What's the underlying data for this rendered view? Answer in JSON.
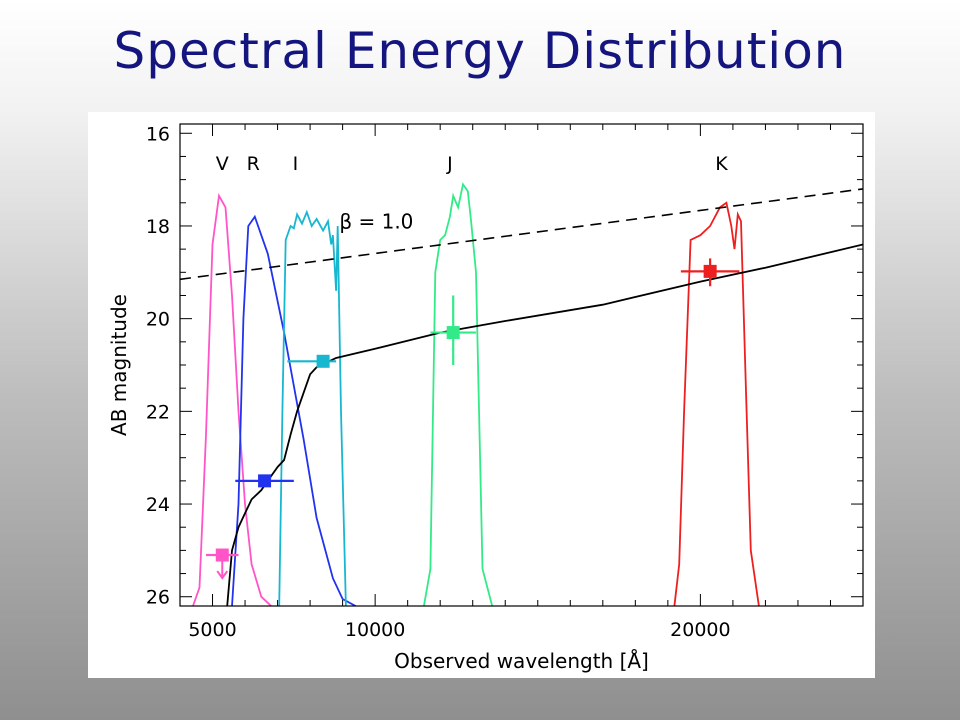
{
  "slide": {
    "title": "Spectral Energy Distribution"
  },
  "chart_data": {
    "type": "line",
    "title": "Spectral Energy Distribution",
    "xlabel": "Observed wavelength [Å]",
    "ylabel": "AB magnitude",
    "xlim": [
      4000,
      25000
    ],
    "ylim": [
      26.2,
      15.8
    ],
    "y_inverted": true,
    "x_ticks": [
      5000,
      10000,
      20000
    ],
    "y_ticks": [
      16,
      18,
      20,
      22,
      24,
      26
    ],
    "filters": [
      {
        "name": "V",
        "label_x": 5300,
        "color": "#ff55c8",
        "curve": [
          [
            4400,
            26.2
          ],
          [
            4600,
            25.8
          ],
          [
            4800,
            22.5
          ],
          [
            5000,
            18.4
          ],
          [
            5200,
            17.35
          ],
          [
            5400,
            17.6
          ],
          [
            5600,
            19.5
          ],
          [
            5800,
            22.0
          ],
          [
            6000,
            24.0
          ],
          [
            6200,
            25.3
          ],
          [
            6500,
            26.0
          ],
          [
            6800,
            26.2
          ]
        ]
      },
      {
        "name": "R",
        "label_x": 6250,
        "color": "#2233ee",
        "curve": [
          [
            5600,
            26.2
          ],
          [
            5800,
            24.0
          ],
          [
            5950,
            20.0
          ],
          [
            6100,
            18.0
          ],
          [
            6300,
            17.8
          ],
          [
            6700,
            18.6
          ],
          [
            7200,
            20.3
          ],
          [
            7800,
            22.6
          ],
          [
            8200,
            24.3
          ],
          [
            8700,
            25.6
          ],
          [
            9000,
            26.05
          ],
          [
            9400,
            26.2
          ]
        ]
      },
      {
        "name": "I",
        "label_x": 7550,
        "color": "#17b7d0",
        "curve": [
          [
            7050,
            26.2
          ],
          [
            7150,
            22.0
          ],
          [
            7250,
            18.3
          ],
          [
            7400,
            18.0
          ],
          [
            7500,
            18.05
          ],
          [
            7600,
            17.75
          ],
          [
            7750,
            17.95
          ],
          [
            7900,
            17.7
          ],
          [
            8050,
            18.0
          ],
          [
            8200,
            17.85
          ],
          [
            8400,
            18.1
          ],
          [
            8550,
            17.9
          ],
          [
            8650,
            18.4
          ],
          [
            8700,
            18.2
          ],
          [
            8800,
            19.4
          ],
          [
            8850,
            18.0
          ],
          [
            8950,
            22.0
          ],
          [
            9100,
            26.2
          ]
        ]
      },
      {
        "name": "J",
        "label_x": 12300,
        "color": "#33ea88",
        "curve": [
          [
            11500,
            26.2
          ],
          [
            11700,
            25.4
          ],
          [
            11850,
            19.0
          ],
          [
            12000,
            18.3
          ],
          [
            12150,
            18.2
          ],
          [
            12300,
            17.8
          ],
          [
            12400,
            17.35
          ],
          [
            12550,
            17.6
          ],
          [
            12700,
            17.1
          ],
          [
            12850,
            17.25
          ],
          [
            12950,
            17.9
          ],
          [
            13100,
            19.0
          ],
          [
            13300,
            25.4
          ],
          [
            13600,
            26.2
          ]
        ]
      },
      {
        "name": "K",
        "label_x": 20650,
        "color": "#ee1f1f",
        "curve": [
          [
            19200,
            26.2
          ],
          [
            19350,
            25.3
          ],
          [
            19500,
            22.0
          ],
          [
            19700,
            18.3
          ],
          [
            20000,
            18.2
          ],
          [
            20300,
            18.0
          ],
          [
            20600,
            17.6
          ],
          [
            20800,
            17.5
          ],
          [
            20950,
            18.0
          ],
          [
            21050,
            18.5
          ],
          [
            21150,
            17.75
          ],
          [
            21250,
            17.9
          ],
          [
            21400,
            21.5
          ],
          [
            21550,
            25.0
          ],
          [
            21800,
            26.2
          ]
        ]
      }
    ],
    "reference_line": {
      "label": "β = 1.0",
      "label_x": 8900,
      "label_y": 18.05,
      "points": [
        [
          4000,
          19.15
        ],
        [
          25000,
          17.2
        ]
      ]
    },
    "sed_model": {
      "color": "#000000",
      "curve": [
        [
          5450,
          26.2
        ],
        [
          5600,
          25.0
        ],
        [
          5800,
          24.5
        ],
        [
          6000,
          24.2
        ],
        [
          6200,
          23.9
        ],
        [
          6500,
          23.7
        ],
        [
          6750,
          23.45
        ],
        [
          7000,
          23.2
        ],
        [
          7200,
          23.05
        ],
        [
          7400,
          22.5
        ],
        [
          7600,
          22.0
        ],
        [
          7800,
          21.6
        ],
        [
          8000,
          21.2
        ],
        [
          8200,
          21.05
        ],
        [
          8800,
          20.85
        ],
        [
          10000,
          20.65
        ],
        [
          12000,
          20.3
        ],
        [
          14000,
          20.05
        ],
        [
          17000,
          19.7
        ],
        [
          20000,
          19.2
        ],
        [
          22000,
          18.9
        ],
        [
          25000,
          18.4
        ]
      ]
    },
    "photometry": [
      {
        "band": "V",
        "x": 5300,
        "y": 25.1,
        "xerr": [
          4800,
          5800
        ],
        "upper_limit": true,
        "color": "#ff55c8"
      },
      {
        "band": "R",
        "x": 6600,
        "y": 23.5,
        "xerr": [
          5700,
          7500
        ],
        "color": "#2233ee"
      },
      {
        "band": "I",
        "x": 8400,
        "y": 20.92,
        "xerr": [
          7300,
          8800
        ],
        "color": "#17b7d0"
      },
      {
        "band": "J",
        "x": 12400,
        "y": 20.3,
        "xerr": [
          11700,
          13100
        ],
        "yerr": [
          19.5,
          21.0
        ],
        "color": "#33ea88"
      },
      {
        "band": "K",
        "x": 20300,
        "y": 18.98,
        "xerr": [
          19400,
          21200
        ],
        "yerr": [
          18.7,
          19.3
        ],
        "color": "#ee1f1f"
      }
    ]
  }
}
